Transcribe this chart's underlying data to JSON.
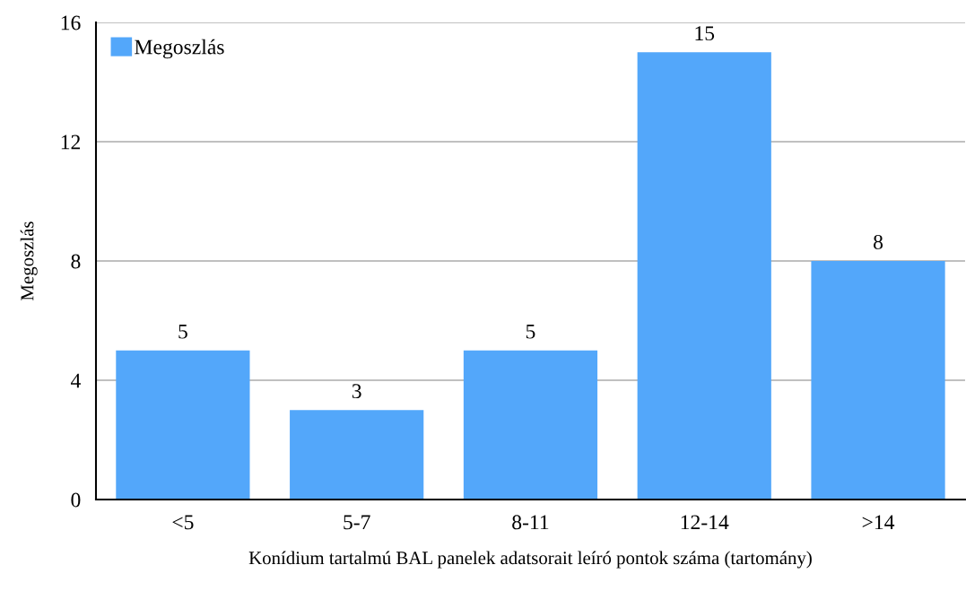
{
  "chart_data": {
    "type": "bar",
    "xlabel": "Konídium tartalmú BAL panelek adatsorait leíró pontok száma (tartomány)",
    "ylabel": "Megoszlás",
    "categories": [
      "<5",
      "5-7",
      "8-11",
      "12-14",
      ">14"
    ],
    "series": [
      {
        "name": "Megoszlás",
        "color": "#53a7fa",
        "values": [
          5,
          3,
          5,
          15,
          8
        ]
      }
    ],
    "ylim": [
      0,
      16
    ],
    "yticks": [
      0,
      4,
      8,
      12,
      16
    ],
    "grid": "y",
    "legend": "top left",
    "data_labels": true
  }
}
